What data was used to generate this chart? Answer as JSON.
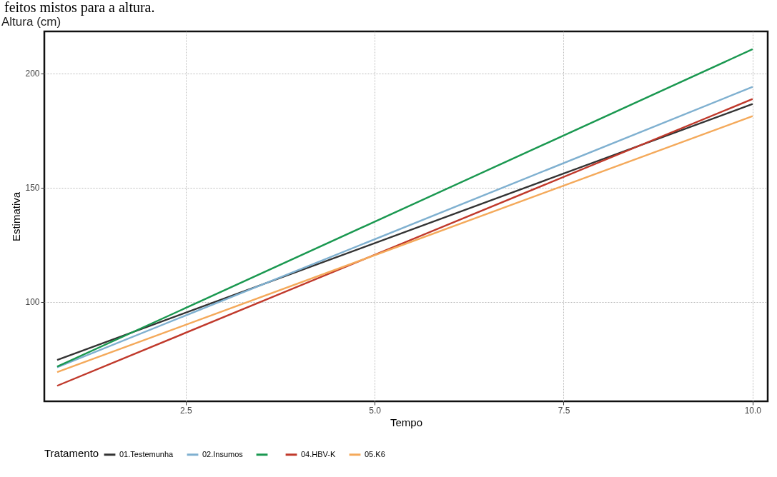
{
  "chart_data": {
    "type": "line",
    "title": "Altura (cm)",
    "xlabel": "Tempo",
    "ylabel": "Estimativa",
    "legend_title": "Tratamento",
    "annotations": [
      "feitos mistos para a altura."
    ],
    "x": [
      0.8,
      10
    ],
    "series": [
      {
        "name": "01.Testemunha",
        "color": "#333333",
        "values": [
          74.5,
          186.6
        ]
      },
      {
        "name": "02.Insumos",
        "color": "#7fb0d0",
        "values": [
          71.3,
          194.1
        ]
      },
      {
        "color": "#1a9850",
        "values": [
          71.6,
          210.6
        ]
      },
      {
        "name": "04.HBV-K",
        "color": "#c0392b",
        "values": [
          63.2,
          188.8
        ]
      },
      {
        "name": "05.K6",
        "color": "#f4a95a",
        "values": [
          69.2,
          181.3
        ]
      }
    ],
    "xlim": [
      0.63,
      10.2
    ],
    "xticks": [
      2.5,
      {
        "value": 5,
        "label": "5.0"
      },
      7.5,
      {
        "value": 10,
        "label": "10.0"
      }
    ],
    "ylim": [
      56.4,
      218.4
    ],
    "yticks": [
      100,
      150,
      200
    ],
    "grid": true,
    "legend": "bottom",
    "line_style": "solid"
  }
}
